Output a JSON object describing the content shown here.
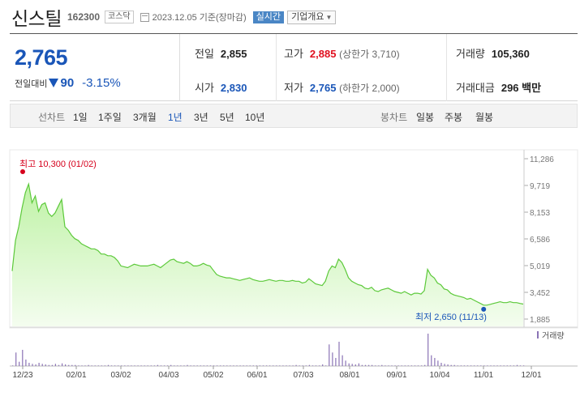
{
  "header": {
    "name": "신스틸",
    "code": "162300",
    "market": "코스닥",
    "date_text": "2023.12.05 기준(장마감)",
    "realtime_label": "실시간",
    "company_label": "기업개요"
  },
  "price": {
    "current": "2,765",
    "change_label": "전일대비",
    "change": "90",
    "change_pct": "-3.15%"
  },
  "stats": {
    "prev_label": "전일",
    "prev": "2,855",
    "open_label": "시가",
    "open": "2,830",
    "high_label": "고가",
    "high": "2,885",
    "upper_limit": "(상한가 3,710)",
    "low_label": "저가",
    "low": "2,765",
    "lower_limit": "(하한가 2,000)",
    "volume_label": "거래량",
    "volume": "105,360",
    "amount_label": "거래대금",
    "amount": "296 백만"
  },
  "periods": {
    "line_label": "선차트",
    "line_items": [
      "1일",
      "1주일",
      "3개월",
      "1년",
      "3년",
      "5년",
      "10년"
    ],
    "selected": "1년",
    "candle_label": "봉차트",
    "candle_items": [
      "일봉",
      "주봉",
      "월봉"
    ]
  },
  "chart_data": {
    "type": "area",
    "y_ticks": [
      "11,286",
      "9,719",
      "8,153",
      "6,586",
      "5,019",
      "3,452",
      "1,885"
    ],
    "ylim": [
      1885,
      11286
    ],
    "x_ticks": [
      "12/23",
      "02/01",
      "03/02",
      "04/03",
      "05/02",
      "06/01",
      "07/03",
      "08/01",
      "09/01",
      "10/04",
      "11/01",
      "12/01"
    ],
    "max_annotation": "최고 10,300 (01/02)",
    "min_annotation": "최저 2,650 (11/13)",
    "volume_label": "거래량",
    "series": [
      {
        "values": [
          4700,
          6500,
          7300,
          8400,
          9300,
          9800,
          8700,
          9100,
          8200,
          8600,
          8700,
          8100,
          7900,
          8100,
          8500,
          8900,
          7300,
          7100,
          6800,
          6600,
          6500,
          6300,
          6200,
          6100,
          6000,
          6000,
          5900,
          5700,
          5700,
          5600,
          5600,
          5500,
          5300,
          5000,
          4950,
          4900,
          5000,
          5100,
          5050,
          5000,
          5000,
          5000,
          5050,
          5100,
          5000,
          4900,
          5050,
          5200,
          5350,
          5400,
          5250,
          5200,
          5150,
          5250,
          5150,
          5000,
          5000,
          5050,
          5150,
          5050,
          5000,
          4750,
          4500,
          4400,
          4350,
          4300,
          4300,
          4250,
          4200,
          4150,
          4200,
          4250,
          4300,
          4200,
          4150,
          4100,
          4100,
          4150,
          4200,
          4150,
          4100,
          4150,
          4150,
          4100,
          4100,
          4150,
          4100,
          4100,
          4000,
          4050,
          4250,
          4100,
          3950,
          3900,
          3850,
          4100,
          4700,
          5000,
          4900,
          5400,
          5200,
          4800,
          4300,
          4100,
          4000,
          3900,
          3850,
          3700,
          3650,
          3750,
          3550,
          3500,
          3600,
          3650,
          3700,
          3600,
          3500,
          3450,
          3400,
          3500,
          3400,
          3300,
          3400,
          3400,
          3350,
          3550,
          4800,
          4450,
          4300,
          4000,
          3900,
          3650,
          3600,
          3400,
          3300,
          3250,
          3200,
          3150,
          3050,
          3100,
          3000,
          2900,
          2800,
          2700,
          2700,
          2750,
          2800,
          2850,
          2900,
          2850,
          2850,
          2900,
          2850,
          2850,
          2800,
          2765
        ],
        "volume": [
          1,
          25,
          8,
          30,
          12,
          6,
          4,
          3,
          6,
          4,
          3,
          2,
          2,
          4,
          2,
          5,
          3,
          2,
          2,
          2,
          1,
          1,
          1,
          2,
          1,
          1,
          1,
          1,
          1,
          2,
          1,
          1,
          1,
          1,
          1,
          1,
          1,
          1,
          1,
          1,
          1,
          1,
          1,
          1,
          2,
          1,
          1,
          1,
          2,
          1,
          1,
          1,
          1,
          2,
          1,
          1,
          1,
          1,
          1,
          1,
          1,
          1,
          1,
          1,
          1,
          1,
          1,
          1,
          1,
          1,
          1,
          1,
          1,
          1,
          1,
          1,
          1,
          1,
          1,
          1,
          1,
          1,
          1,
          1,
          1,
          1,
          2,
          1,
          1,
          1,
          2,
          1,
          1,
          1,
          3,
          1,
          40,
          25,
          15,
          45,
          20,
          10,
          5,
          4,
          3,
          5,
          2,
          2,
          2,
          2,
          1,
          1,
          2,
          1,
          1,
          1,
          1,
          1,
          1,
          1,
          1,
          1,
          1,
          1,
          1,
          2,
          60,
          20,
          15,
          10,
          6,
          4,
          3,
          2,
          2,
          1,
          1,
          1,
          1,
          1,
          1,
          1,
          1,
          1,
          1,
          1,
          1,
          1,
          1,
          1,
          1,
          1,
          1,
          2,
          1,
          1
        ]
      }
    ]
  }
}
